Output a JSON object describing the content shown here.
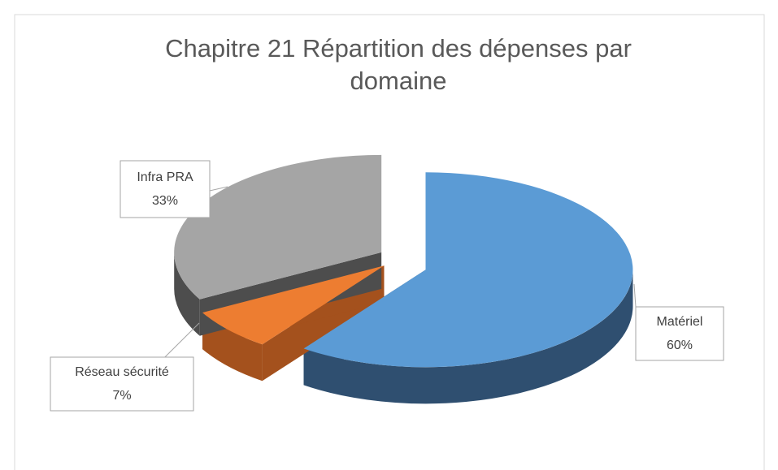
{
  "chart_data": {
    "type": "pie",
    "title": "Chapitre 21 Répartition des dépenses par domaine",
    "categories": [
      "Matériel",
      "Réseau sécurité",
      "Infra PRA"
    ],
    "values": [
      60,
      7,
      33
    ],
    "value_labels": [
      "60%",
      "7%",
      "33%"
    ],
    "colors": [
      "#5b9bd5",
      "#ed7d31",
      "#a5a5a5"
    ],
    "side_colors": [
      "#2f4f70",
      "#a4511d",
      "#4d4d4d"
    ]
  }
}
